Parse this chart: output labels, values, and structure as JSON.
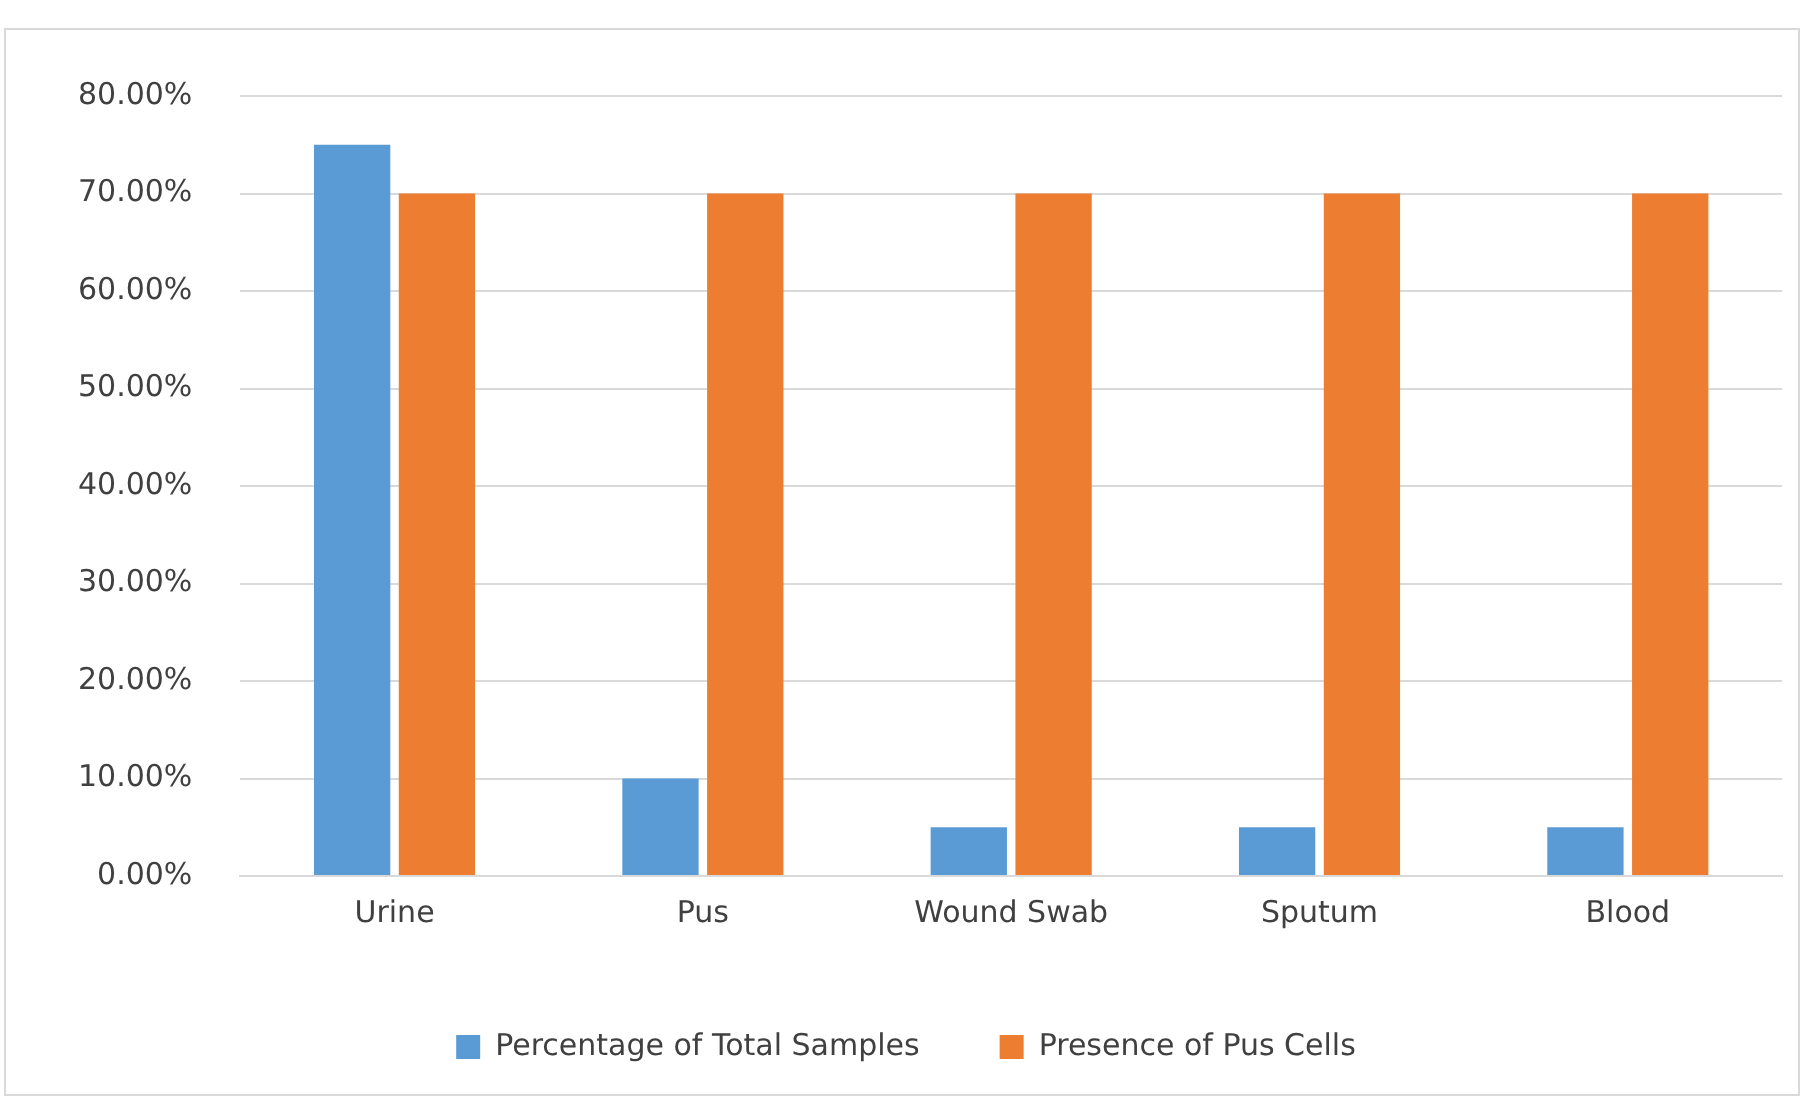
{
  "chart_data": {
    "type": "bar",
    "categories": [
      "Urine",
      "Pus",
      "Wound Swab",
      "Sputum",
      "Blood"
    ],
    "series": [
      {
        "name": "Percentage of Total Samples",
        "color": "#5b9bd5",
        "values": [
          75,
          10,
          5,
          5,
          5
        ]
      },
      {
        "name": "Presence of Pus Cells",
        "color": "#ed7d31",
        "values": [
          70,
          70,
          70,
          70,
          70
        ]
      }
    ],
    "ylim": [
      0,
      80
    ],
    "yticks": [
      {
        "value": 0,
        "label": "0.00%"
      },
      {
        "value": 10,
        "label": "10.00%"
      },
      {
        "value": 20,
        "label": "20.00%"
      },
      {
        "value": 30,
        "label": "30.00%"
      },
      {
        "value": 40,
        "label": "40.00%"
      },
      {
        "value": 50,
        "label": "50.00%"
      },
      {
        "value": 60,
        "label": "60.00%"
      },
      {
        "value": 70,
        "label": "70.00%"
      },
      {
        "value": 80,
        "label": "80.00%"
      }
    ],
    "grid": "y",
    "legend": "bottom"
  }
}
